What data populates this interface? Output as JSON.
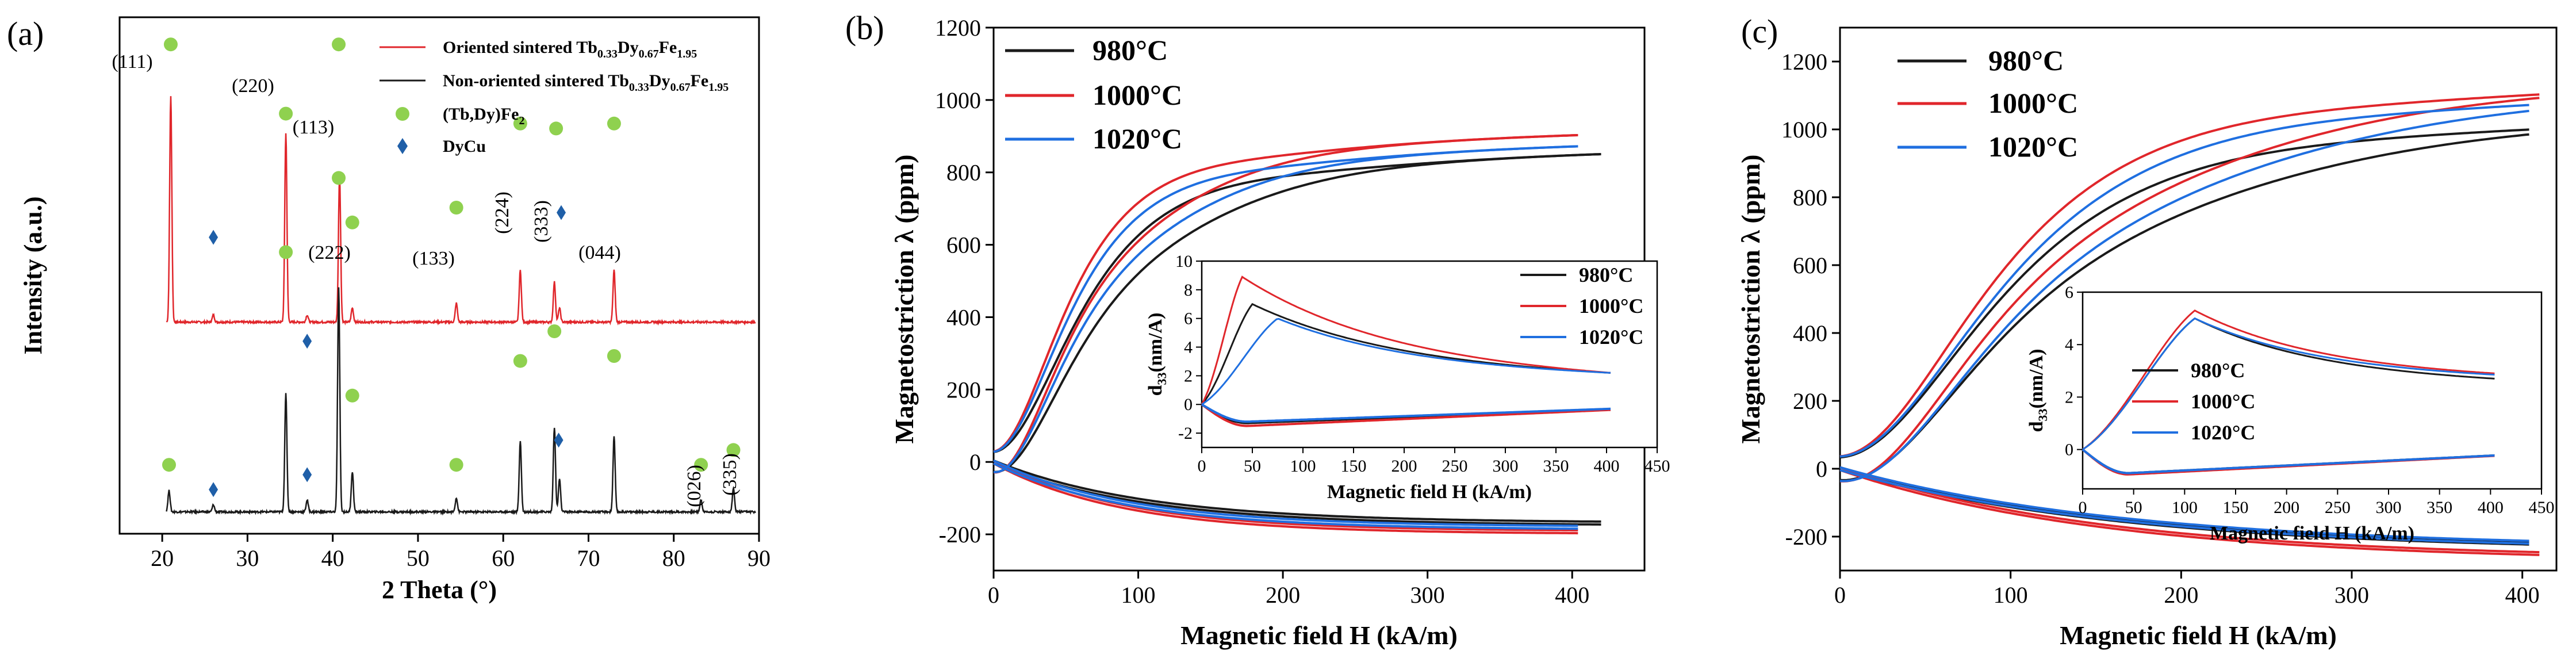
{
  "colors": {
    "black": "#1a1a1a",
    "red": "#e0262b",
    "blue": "#1f6fe0",
    "green": "#8fd14f",
    "diamond": "#1f5fa8"
  },
  "panel_a": {
    "label": "(a)",
    "xlabel": "2 Theta (°)",
    "ylabel": "Intensity (a.u.)",
    "legend": [
      {
        "label": "Oriented sintered Tb",
        "sub1": "0.33",
        "mid1": "Dy",
        "sub2": "0.67",
        "mid2": "Fe",
        "sub3": "1.95",
        "color": "red"
      },
      {
        "label": "Non-oriented sintered Tb",
        "sub1": "0.33",
        "mid1": "Dy",
        "sub2": "0.67",
        "mid2": "Fe",
        "sub3": "1.95",
        "color": "black"
      },
      {
        "label": "(Tb,Dy)Fe",
        "sub1": "2",
        "marker": "circle"
      },
      {
        "label": "DyCu",
        "marker": "diamond"
      }
    ],
    "peak_labels": [
      "(111)",
      "(220)",
      "(113)",
      "(222)",
      "(133)",
      "(224)",
      "(333)",
      "(044)",
      "(026)",
      "(335)"
    ]
  },
  "panel_b": {
    "label": "(b)",
    "legend": [
      "980°C",
      "1000°C",
      "1020°C"
    ],
    "inset_legend": [
      "980°C",
      "1000°C",
      "1020°C"
    ],
    "inset_ylabel_main": "d",
    "inset_ylabel_sub": "33",
    "inset_ylabel_rest": "(nm/A)",
    "inset_xlabel": "Magnetic field H (kA/m)"
  },
  "panel_c": {
    "label": "(c)",
    "legend": [
      "980°C",
      "1000°C",
      "1020°C"
    ],
    "inset_legend": [
      "980°C",
      "1000°C",
      "1020°C"
    ],
    "inset_ylabel_main": "d",
    "inset_ylabel_sub": "33",
    "inset_ylabel_rest": "(nm/A)",
    "inset_xlabel": "Magnetic field H (kA/m)"
  },
  "chart_data": [
    {
      "type": "line",
      "title": "",
      "xlabel": "2 Theta (°)",
      "ylabel": "Intensity (a.u.)",
      "xlim": [
        15,
        90
      ],
      "xticks": [
        20,
        30,
        40,
        50,
        60,
        70,
        80,
        90
      ],
      "series": [
        {
          "name": "Oriented sintered Tb0.33Dy0.67Fe1.95",
          "color": "red",
          "baseline": 0.55,
          "peaks": [
            [
              21.0,
              0.96
            ],
            [
              26.0,
              0.03
            ],
            [
              34.5,
              0.8
            ],
            [
              37.0,
              0.03
            ],
            [
              40.8,
              0.62
            ],
            [
              42.3,
              0.06
            ],
            [
              54.5,
              0.08
            ],
            [
              62.0,
              0.22
            ],
            [
              66.0,
              0.17
            ],
            [
              66.6,
              0.06
            ],
            [
              73.0,
              0.22
            ]
          ]
        },
        {
          "name": "Non-oriented sintered Tb0.33Dy0.67Fe1.95",
          "color": "black",
          "baseline": 0.0,
          "peaks": [
            [
              20.8,
              0.09
            ],
            [
              26.0,
              0.03
            ],
            [
              34.5,
              0.5
            ],
            [
              37.0,
              0.05
            ],
            [
              40.7,
              0.95
            ],
            [
              42.3,
              0.17
            ],
            [
              54.5,
              0.06
            ],
            [
              62.0,
              0.3
            ],
            [
              66.0,
              0.36
            ],
            [
              66.6,
              0.14
            ],
            [
              73.0,
              0.32
            ],
            [
              83.2,
              0.05
            ],
            [
              87.0,
              0.1
            ]
          ]
        }
      ],
      "markers": {
        "circle": [
          [
            21.0,
            0.98
          ],
          [
            34.5,
            0.84
          ],
          [
            40.7,
            0.71
          ],
          [
            42.3,
            0.62
          ],
          [
            54.5,
            0.65
          ],
          [
            62.0,
            0.82
          ],
          [
            66.2,
            0.81
          ],
          [
            73.0,
            0.82
          ],
          [
            20.8,
            0.13
          ],
          [
            34.5,
            0.56
          ],
          [
            40.7,
            0.98
          ],
          [
            42.3,
            0.27
          ],
          [
            54.5,
            0.13
          ],
          [
            62.0,
            0.34
          ],
          [
            66.0,
            0.4
          ],
          [
            73.0,
            0.35
          ],
          [
            83.2,
            0.13
          ],
          [
            87.0,
            0.16
          ]
        ],
        "diamond": [
          [
            26.0,
            0.59
          ],
          [
            37.0,
            0.38
          ],
          [
            66.8,
            0.64
          ],
          [
            26.0,
            0.08
          ],
          [
            37.0,
            0.11
          ],
          [
            66.5,
            0.18
          ]
        ]
      }
    },
    {
      "type": "line",
      "title": "",
      "xlabel": "Magnetic field H (kA/m)",
      "ylabel": "Magnetostriction λ (ppm)",
      "xlim": [
        0,
        450
      ],
      "ylim": [
        -300,
        1200
      ],
      "xticks": [
        0,
        100,
        200,
        300,
        400
      ],
      "yticks": [
        -200,
        0,
        200,
        400,
        600,
        800,
        1000,
        1200
      ],
      "series": [
        {
          "name": "980°C",
          "color": "black",
          "lambda_max": 885,
          "k": 70,
          "perp_min": -172,
          "h_max": 420
        },
        {
          "name": "1000°C",
          "color": "red",
          "lambda_max": 935,
          "k": 60,
          "perp_min": -195,
          "h_max": 405
        },
        {
          "name": "1020°C",
          "color": "blue",
          "lambda_max": 905,
          "k": 63,
          "perp_min": -183,
          "h_max": 405
        }
      ],
      "inset": {
        "xlim": [
          0,
          450
        ],
        "ylim": [
          -3,
          10
        ],
        "xticks": [
          0,
          50,
          100,
          150,
          200,
          250,
          300,
          350,
          400,
          450
        ],
        "yticks": [
          -2,
          0,
          2,
          4,
          6,
          8,
          10
        ],
        "series": [
          {
            "name": "980°C",
            "color": "black",
            "peak_x": 50,
            "peak_y": 7.0,
            "end_y": 2.2,
            "neg_min": -1.3
          },
          {
            "name": "1000°C",
            "color": "red",
            "peak_x": 40,
            "peak_y": 8.9,
            "end_y": 2.2,
            "neg_min": -1.5
          },
          {
            "name": "1020°C",
            "color": "blue",
            "peak_x": 75,
            "peak_y": 6.0,
            "end_y": 2.2,
            "neg_min": -1.2
          }
        ]
      }
    },
    {
      "type": "line",
      "title": "",
      "xlabel": "Magnetic field H (kA/m)",
      "ylabel": "Magnetostriction λ (ppm)",
      "xlim": [
        0,
        420
      ],
      "ylim": [
        -300,
        1300
      ],
      "xticks": [
        0,
        100,
        200,
        300,
        400
      ],
      "yticks": [
        -200,
        0,
        200,
        400,
        600,
        800,
        1000,
        1200
      ],
      "series": [
        {
          "name": "980°C",
          "color": "black",
          "lambda_max": 1080,
          "k": 110,
          "perp_min": -240,
          "h_max": 405
        },
        {
          "name": "1000°C",
          "color": "red",
          "lambda_max": 1185,
          "k": 105,
          "perp_min": -270,
          "h_max": 410
        },
        {
          "name": "1020°C",
          "color": "blue",
          "lambda_max": 1160,
          "k": 112,
          "perp_min": -238,
          "h_max": 405
        }
      ],
      "inset": {
        "xlim": [
          0,
          450
        ],
        "ylim": [
          -1.5,
          6
        ],
        "xticks": [
          0,
          50,
          100,
          150,
          200,
          250,
          300,
          350,
          400,
          450
        ],
        "yticks": [
          0,
          2,
          4,
          6
        ],
        "series": [
          {
            "name": "980°C",
            "color": "black",
            "peak_x": 110,
            "peak_y": 5.0,
            "end_y": 2.7,
            "neg_min": -0.9
          },
          {
            "name": "1000°C",
            "color": "red",
            "peak_x": 110,
            "peak_y": 5.3,
            "end_y": 2.9,
            "neg_min": -0.95
          },
          {
            "name": "1020°C",
            "color": "blue",
            "peak_x": 110,
            "peak_y": 5.0,
            "end_y": 2.85,
            "neg_min": -0.9
          }
        ]
      }
    }
  ]
}
